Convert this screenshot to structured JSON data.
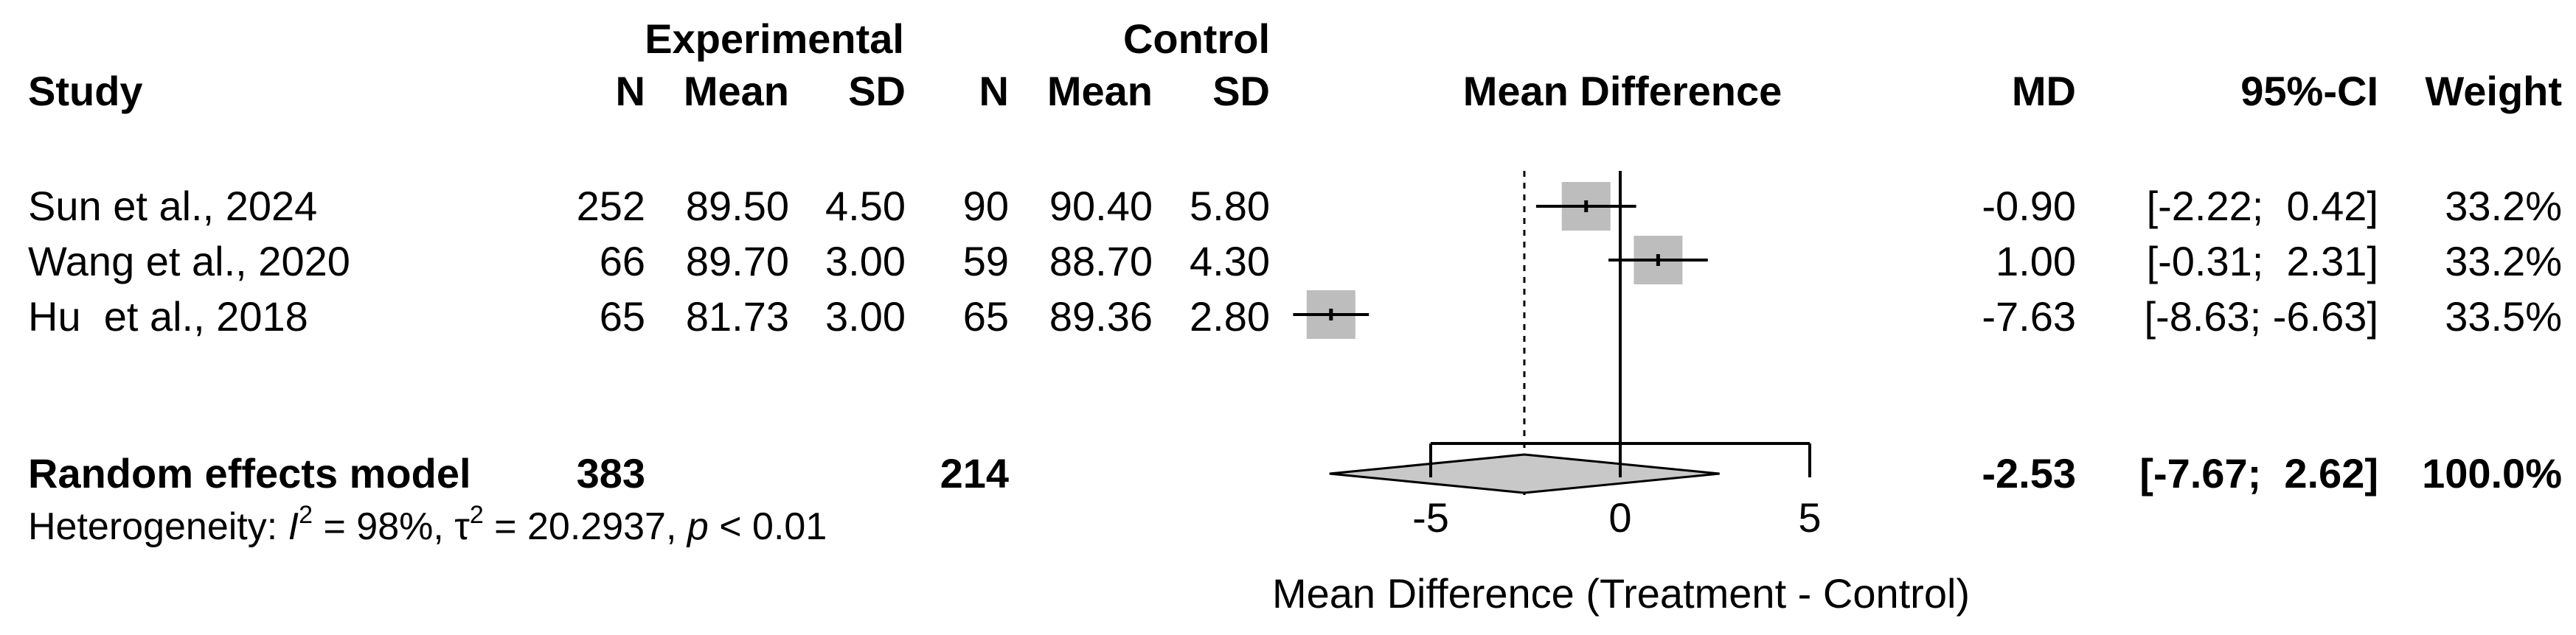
{
  "chart_data": {
    "type": "forest",
    "title": "",
    "group_labels": {
      "experimental": "Experimental",
      "control": "Control"
    },
    "columns": {
      "study": "Study",
      "n": "N",
      "mean": "Mean",
      "sd": "SD",
      "plot": "Mean Difference",
      "md": "MD",
      "ci": "95%-CI",
      "weight": "Weight"
    },
    "studies": [
      {
        "name": "Sun et al., 2024",
        "exp_n": "252",
        "exp_mean": "89.50",
        "exp_sd": "4.50",
        "ctrl_n": "90",
        "ctrl_mean": "90.40",
        "ctrl_sd": "5.80",
        "md_text": "-0.90",
        "ci_text": "[-2.22;  0.42]",
        "weight_text": "33.2%",
        "md": -0.9,
        "lo": -2.22,
        "hi": 0.42,
        "weight": 33.2
      },
      {
        "name": "Wang et al., 2020",
        "exp_n": "66",
        "exp_mean": "89.70",
        "exp_sd": "3.00",
        "ctrl_n": "59",
        "ctrl_mean": "88.70",
        "ctrl_sd": "4.30",
        "md_text": "1.00",
        "ci_text": "[-0.31;  2.31]",
        "weight_text": "33.2%",
        "md": 1.0,
        "lo": -0.31,
        "hi": 2.31,
        "weight": 33.2
      },
      {
        "name": "Hu  et al., 2018",
        "exp_n": "65",
        "exp_mean": "81.73",
        "exp_sd": "3.00",
        "ctrl_n": "65",
        "ctrl_mean": "89.36",
        "ctrl_sd": "2.80",
        "md_text": "-7.63",
        "ci_text": "[-8.63; -6.63]",
        "weight_text": "33.5%",
        "md": -7.63,
        "lo": -8.63,
        "hi": -6.63,
        "weight": 33.5
      }
    ],
    "pooled": {
      "name": "Random effects model",
      "exp_n": "383",
      "ctrl_n": "214",
      "md_text": "-2.53",
      "ci_text": "[-7.67;  2.62]",
      "weight_text": "100.0%",
      "md": -2.53,
      "lo": -7.67,
      "hi": 2.62
    },
    "heterogeneity": {
      "prefix": "Heterogeneity: ",
      "i2_symbol": "I",
      "i2_value": " = 98%, ",
      "tau_symbol": "τ",
      "tau_value": " = 20.2937, ",
      "p_symbol": "p",
      "p_value": " < 0.01",
      "sup": "2"
    },
    "x_axis": {
      "label": "Mean Difference (Treatment - Control)",
      "ticks": [
        -5,
        0,
        5
      ],
      "tick_labels": [
        "-5",
        "0",
        "5"
      ],
      "range": [
        -5,
        5
      ],
      "null_line": 0
    }
  }
}
